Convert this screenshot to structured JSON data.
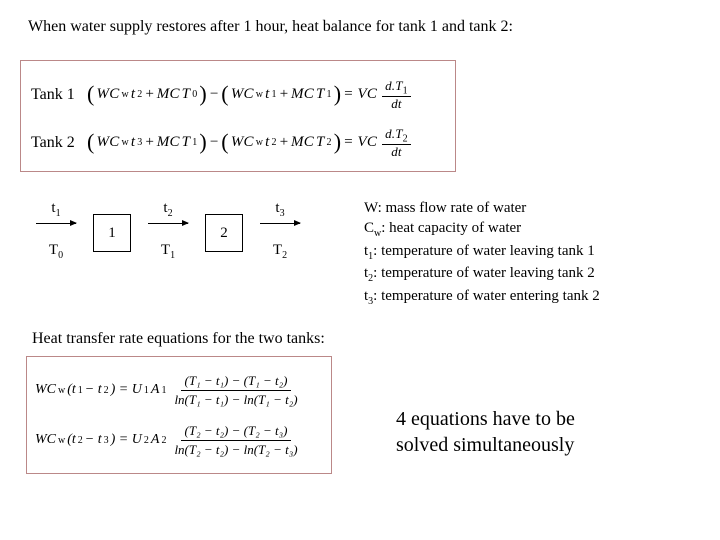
{
  "title": "When water supply restores after 1 hour, heat balance for tank 1 and tank 2:",
  "tank1_label": "Tank 1",
  "tank2_label": "Tank 2",
  "eq1_lhs1": "WC",
  "eq1_w": "w",
  "eq1_t2": "t",
  "eq1_s2": "2",
  "eq1_plus": " + ",
  "eq1_M": "MC",
  "eq1_T0": "T",
  "eq1_sT0": "0",
  "eq1_minus": " − ",
  "eq1_t1": "t",
  "eq1_s1": "1",
  "eq1_T1": "T",
  "eq1_sT1": "1",
  "eq1_eq": " = VC ",
  "eq1_dnum": "d.T",
  "eq1_dnums": "1",
  "eq1_dden": "dt",
  "eq2_t3": "t",
  "eq2_s3": "3",
  "eq2_T1b": "T",
  "eq2_sT1b": "1",
  "eq2_t2b": "t",
  "eq2_s2b": "2",
  "eq2_T2": "T",
  "eq2_sT2": "2",
  "eq2_dnum": "d.T",
  "eq2_dnums": "2",
  "flow_t1": "t",
  "flow_t1s": "1",
  "flow_t2": "t",
  "flow_t2s": "2",
  "flow_t3": "t",
  "flow_t3s": "3",
  "flow_T0": "T",
  "flow_T0s": "0",
  "flow_T1": "T",
  "flow_T1s": "1",
  "flow_T2": "T",
  "flow_T2s": "2",
  "flow_box1": "1",
  "flow_box2": "2",
  "legend": {
    "l1a": "W: mass flow rate of water",
    "l2a": "C",
    "l2s": "w",
    "l2b": ": heat capacity of water",
    "l3a": "t",
    "l3s": "1",
    "l3b": ": temperature of water leaving tank 1",
    "l4a": "t",
    "l4s": "2",
    "l4b": ": temperature of water leaving tank 2",
    "l5a": "t",
    "l5s": "3",
    "l5b": ": temperature of water entering tank 2"
  },
  "subtitle": "Heat transfer rate equations for the two tanks:",
  "lmtd1_lhs": "WC",
  "lmtd1_w": "w",
  "lmtd1_diff_a": "(t",
  "lmtd1_diff_as": "1",
  "lmtd1_diff_m": " − t",
  "lmtd1_diff_bs": "2",
  "lmtd1_diff_c": ") = U",
  "lmtd1_Us": "1",
  "lmtd1_A": "A",
  "lmtd1_As": "1",
  "lmtd1_num": "(T₁ − t₁) − (T₁ − t₂)",
  "lmtd1_den": "ln(T₁ − t₁) − ln(T₁ − t₂)",
  "lmtd2_diff_a": "(t",
  "lmtd2_diff_as": "2",
  "lmtd2_diff_m": " − t",
  "lmtd2_diff_bs": "3",
  "lmtd2_diff_c": ") = U",
  "lmtd2_Us": "2",
  "lmtd2_A": "A",
  "lmtd2_As": "2",
  "lmtd2_num": "(T₂ − t₂) − (T₂ − t₃)",
  "lmtd2_den": "ln(T₂ − t₂) − ln(T₂ − t₃)",
  "conclusion_a": "4 equations have to be",
  "conclusion_b": "solved simultaneously",
  "colors": {
    "border": "#b88",
    "text": "#000000",
    "bg": "#ffffff"
  }
}
